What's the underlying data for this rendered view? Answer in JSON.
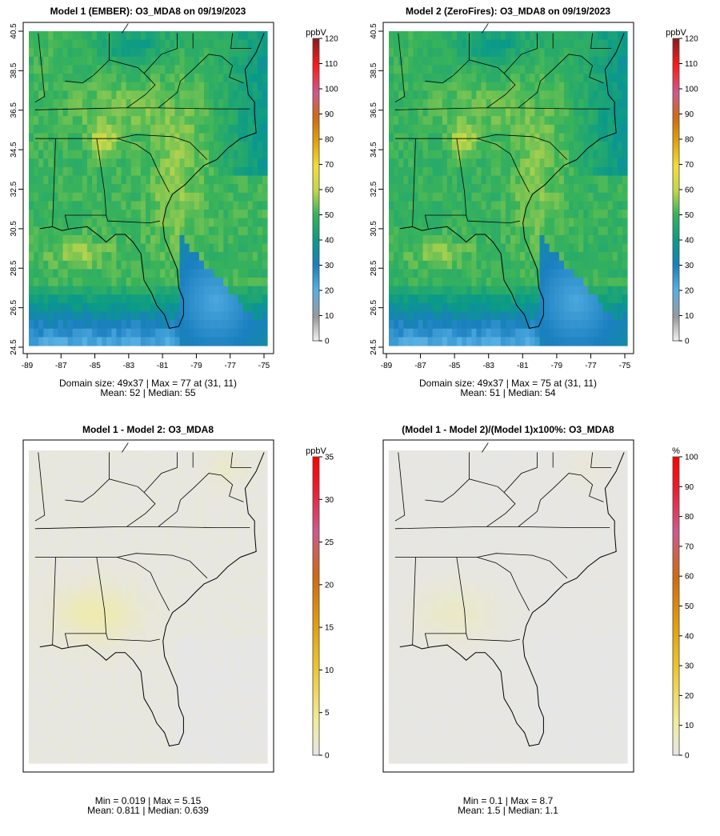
{
  "chart_data": [
    {
      "type": "heatmap",
      "title": "Model 1 (EMBER): O3_MDA8 on 09/19/2023",
      "xlim": [
        -89.5,
        -74.5
      ],
      "ylim": [
        24.2,
        40.6
      ],
      "x_ticks": [
        "-89",
        "-87",
        "-85",
        "-83",
        "-81",
        "-79",
        "-77",
        "-75"
      ],
      "y_ticks": [
        "24.5",
        "26.5",
        "28.5",
        "30.5",
        "32.5",
        "34.5",
        "36.5",
        "38.5",
        "40.5"
      ],
      "legend": {
        "unit": "ppbV",
        "range": [
          0,
          120
        ],
        "ticks": [
          "0",
          "10",
          "20",
          "30",
          "40",
          "50",
          "60",
          "70",
          "80",
          "90",
          "100",
          "110",
          "120"
        ]
      },
      "domain": "Domain size: 49x37 | Max = 77 at (31, 11)",
      "summary": "Mean: 52 |  Median: 55",
      "grid_cols": 49,
      "grid_rows": 37,
      "field": "model1"
    },
    {
      "type": "heatmap",
      "title": "Model 2 (ZeroFires): O3_MDA8 on 09/19/2023",
      "xlim": [
        -89.5,
        -74.5
      ],
      "ylim": [
        24.2,
        40.6
      ],
      "x_ticks": [
        "-89",
        "-87",
        "-85",
        "-83",
        "-81",
        "-79",
        "-77",
        "-75"
      ],
      "y_ticks": [
        "24.5",
        "26.5",
        "28.5",
        "30.5",
        "32.5",
        "34.5",
        "36.5",
        "38.5",
        "40.5"
      ],
      "legend": {
        "unit": "ppbV",
        "range": [
          0,
          120
        ],
        "ticks": [
          "0",
          "10",
          "20",
          "30",
          "40",
          "50",
          "60",
          "70",
          "80",
          "90",
          "100",
          "110",
          "120"
        ]
      },
      "domain": "Domain size: 49x37 | Max = 75 at (31, 11)",
      "summary": "Mean: 51 |  Median: 54",
      "grid_cols": 49,
      "grid_rows": 37,
      "field": "model2"
    },
    {
      "type": "heatmap",
      "title": "Model 1 - Model 2: O3_MDA8",
      "legend": {
        "unit": "ppbV",
        "range": [
          0,
          35
        ],
        "ticks": [
          "0",
          "5",
          "10",
          "15",
          "20",
          "25",
          "30",
          "35"
        ]
      },
      "domain": "Min = 0.019 | Max = 5.15",
      "summary": "Mean: 0.811 |  Median: 0.639",
      "grid_cols": 49,
      "grid_rows": 37,
      "field": "diff"
    },
    {
      "type": "heatmap",
      "title": "(Model 1 - Model 2)/(Model 1)x100%: O3_MDA8",
      "legend": {
        "unit": "%",
        "range": [
          0,
          100
        ],
        "ticks": [
          "0",
          "10",
          "20",
          "30",
          "40",
          "50",
          "60",
          "70",
          "80",
          "90",
          "100"
        ]
      },
      "domain": "Min = 0.1 | Max = 8.7",
      "summary": "Mean: 1.5 |  Median: 1.1",
      "grid_cols": 49,
      "grid_rows": 37,
      "field": "pct"
    }
  ]
}
